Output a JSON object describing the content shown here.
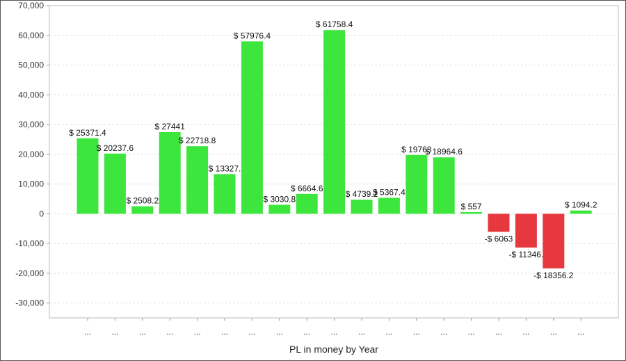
{
  "chart_data": {
    "type": "bar",
    "title": "",
    "xlabel": "PL in money by Year",
    "ylabel": "",
    "ylim": [
      -35000,
      70000
    ],
    "yticks": [
      70000,
      60000,
      50000,
      40000,
      30000,
      20000,
      10000,
      0,
      -10000,
      -20000,
      -30000
    ],
    "ytick_labels": [
      "70,000",
      "60,000",
      "50,000",
      "40,000",
      "30,000",
      "20,000",
      "10,000",
      "0",
      "-10,000",
      "-20,000",
      "-30,000"
    ],
    "grid": true,
    "categories": [
      "...",
      "...",
      "...",
      "...",
      "...",
      "...",
      "...",
      "...",
      "...",
      "...",
      "...",
      "...",
      "...",
      "...",
      "...",
      "...",
      "...",
      "...",
      "..."
    ],
    "values": [
      25371.4,
      20237.6,
      2508.2,
      27441,
      22718.8,
      13327,
      57976.4,
      3030.8,
      6664.6,
      61758.4,
      4739.2,
      5367.4,
      19763,
      18964.6,
      557,
      -6063,
      -11346,
      -18356.2,
      1094.2
    ],
    "data_labels": [
      "$ 25371.4",
      "$ 20237.6",
      "$ 2508.2",
      "$ 27441",
      "$ 22718.8",
      "$ 13327.",
      "$ 57976.4",
      "$ 3030.8",
      "$ 6664.6",
      "$ 61758.4",
      "$ 4739.2",
      "$ 5367.4",
      "$ 19763",
      "$ 18964.6",
      "$ 557",
      "-$ 6063",
      "-$ 11346.",
      "-$ 18356.2",
      "$ 1094.2"
    ],
    "colors": {
      "positive": "#3de63d",
      "negative": "#e8383f"
    }
  }
}
